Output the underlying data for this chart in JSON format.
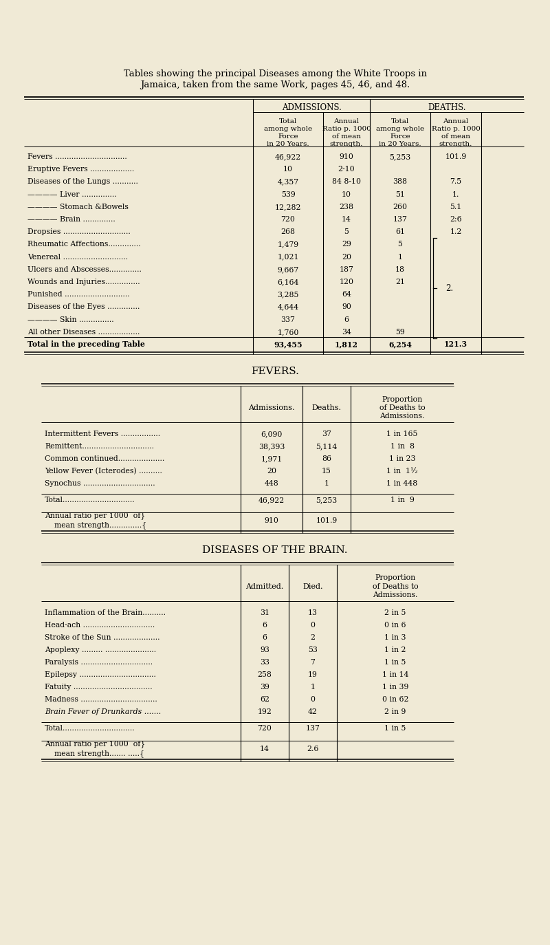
{
  "bg_color": "#f0ead6",
  "title_line1": "Tables showing the principal Diseases among the White Troops in",
  "title_line2": "Jamaica, taken from the same Work, pages 45, 46, and 48.",
  "table1_rows": [
    [
      "Fevers ...............................",
      "46,922",
      "910",
      "5,253",
      "101.9"
    ],
    [
      "Eruptive Fevers ...................",
      "10",
      "2-10",
      "",
      ""
    ],
    [
      "Diseases of the Lungs ...........",
      "4,357",
      "84 8-10",
      "388",
      "7.5"
    ],
    [
      "———— Liver ...............",
      "539",
      "10",
      "51",
      "1."
    ],
    [
      "———— Stomach &Bowels",
      "12,282",
      "238",
      "260",
      "5.1"
    ],
    [
      "———— Brain ..............",
      "720",
      "14",
      "137",
      "2:6"
    ],
    [
      "Dropsies .............................",
      "268",
      "5",
      "61",
      "1.2"
    ],
    [
      "Rheumatic Affections..............",
      "1,479",
      "29",
      "5",
      ""
    ],
    [
      "Venereal ............................",
      "1,021",
      "20",
      "1",
      ""
    ],
    [
      "Ulcers and Abscesses..............",
      "9,667",
      "187",
      "18",
      ""
    ],
    [
      "Wounds and Injuries...............",
      "6,164",
      "120",
      "21",
      ""
    ],
    [
      "Punished ............................",
      "3,285",
      "64",
      "",
      ""
    ],
    [
      "Diseases of the Eyes ..............",
      "4,644",
      "90",
      "",
      ""
    ],
    [
      "———— Skin ...............",
      "337",
      "6",
      "",
      ""
    ],
    [
      "All other Diseases ..................",
      "1,760",
      "34",
      "59",
      ""
    ],
    [
      "Total in the preceding Table",
      "93,455",
      "1,812",
      "6,254",
      "121.3"
    ]
  ],
  "bracket_rows": [
    7,
    8,
    9,
    10,
    11,
    12,
    13,
    14
  ],
  "fevers_title": "FEVERS.",
  "fevers_rows": [
    [
      "Intermittent Fevers .................",
      "6,090",
      "37",
      "1 in 165"
    ],
    [
      "Remittent...............................",
      "38,393",
      "5,114",
      "1 in  8"
    ],
    [
      "Common continued....................",
      "1,971",
      "86",
      "1 in 23"
    ],
    [
      "Yellow Fever (Icterodes) ..........",
      "20",
      "15",
      "1 in  1½"
    ],
    [
      "Synochus ...............................",
      "448",
      "1",
      "1 in 448"
    ]
  ],
  "fevers_total_row": [
    "Total...............................",
    "46,922",
    "5,253",
    "1 in  9"
  ],
  "fevers_annual_admissions": "910",
  "fevers_annual_deaths": "101.9",
  "brain_title": "DISEASES OF THE BRAIN.",
  "brain_rows": [
    [
      "Inflammation of the Brain..........",
      "31",
      "13",
      "2 in 5"
    ],
    [
      "Head-ach ...............................",
      "6",
      "0",
      "0 in 6"
    ],
    [
      "Stroke of the Sun ....................",
      "6",
      "2",
      "1 in 3"
    ],
    [
      "Apoplexy ......... ......................",
      "93",
      "53",
      "1 in 2"
    ],
    [
      "Paralysis ...............................",
      "33",
      "7",
      "1 in 5"
    ],
    [
      "Epilepsy .................................",
      "258",
      "19",
      "1 in 14"
    ],
    [
      "Fatuity ..................................",
      "39",
      "1",
      "1 in 39"
    ],
    [
      "Madness .................................",
      "62",
      "0",
      "0 in 62"
    ],
    [
      "Brain Fever of Drunkards .......",
      "192",
      "42",
      "2 in 9"
    ]
  ],
  "brain_total_row": [
    "Total...............................",
    "720",
    "137",
    "1 in 5"
  ],
  "brain_annual_admissions": "14",
  "brain_annual_deaths": "2.6"
}
